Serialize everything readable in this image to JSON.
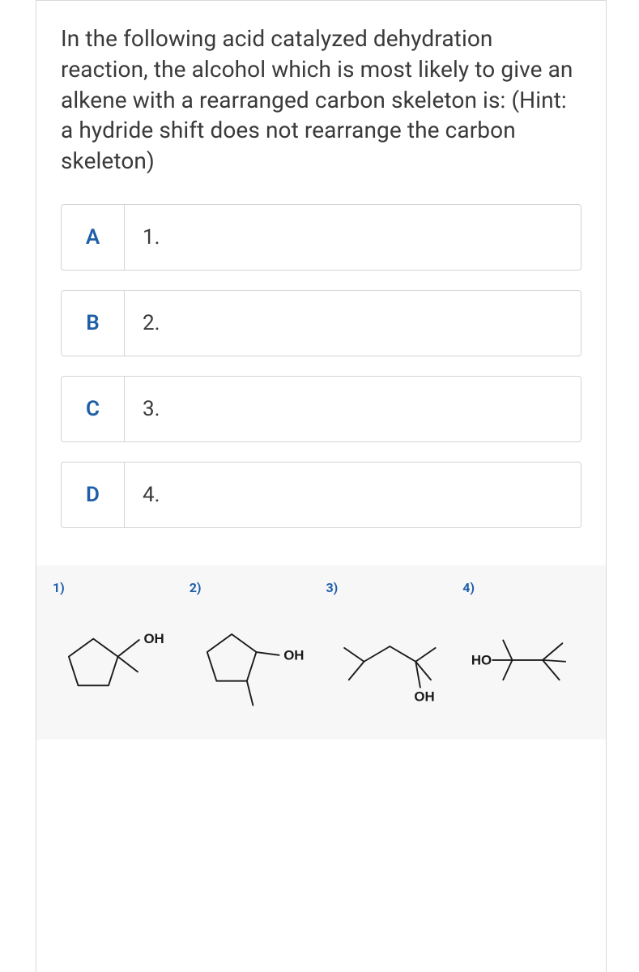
{
  "question": "In the following acid catalyzed dehydration reaction, the alcohol which is most likely to give an alkene with a rearranged carbon skeleton is: (Hint: a hydride shift does not rearrange the carbon skeleton)",
  "options": [
    {
      "letter": "A",
      "text": "1."
    },
    {
      "letter": "B",
      "text": "2."
    },
    {
      "letter": "C",
      "text": "3."
    },
    {
      "letter": "D",
      "text": "4."
    }
  ],
  "figures": [
    {
      "num": "1)",
      "kind": "cyclopentyl-1-methyl-ch2oh",
      "oh_label": "OH"
    },
    {
      "num": "2)",
      "kind": "2-methylcyclopentanol",
      "oh_label": "OH"
    },
    {
      "num": "3)",
      "kind": "2,4-dimethyl-3-pentanol",
      "oh_label": "OH"
    },
    {
      "num": "4)",
      "kind": "2,3,3-trimethyl-2-butanol",
      "oh_label": "HO"
    }
  ],
  "style": {
    "accent_color": "#1f5fa8",
    "text_color": "#3a3a3a",
    "border_color": "#d4d4d4",
    "panel_bg": "#f7f7f7",
    "stroke_color": "#1a1a1a",
    "stroke_width": 2,
    "question_fontsize": 28,
    "option_fontsize": 26,
    "fignum_fontsize": 16,
    "oh_fontsize": 18
  }
}
